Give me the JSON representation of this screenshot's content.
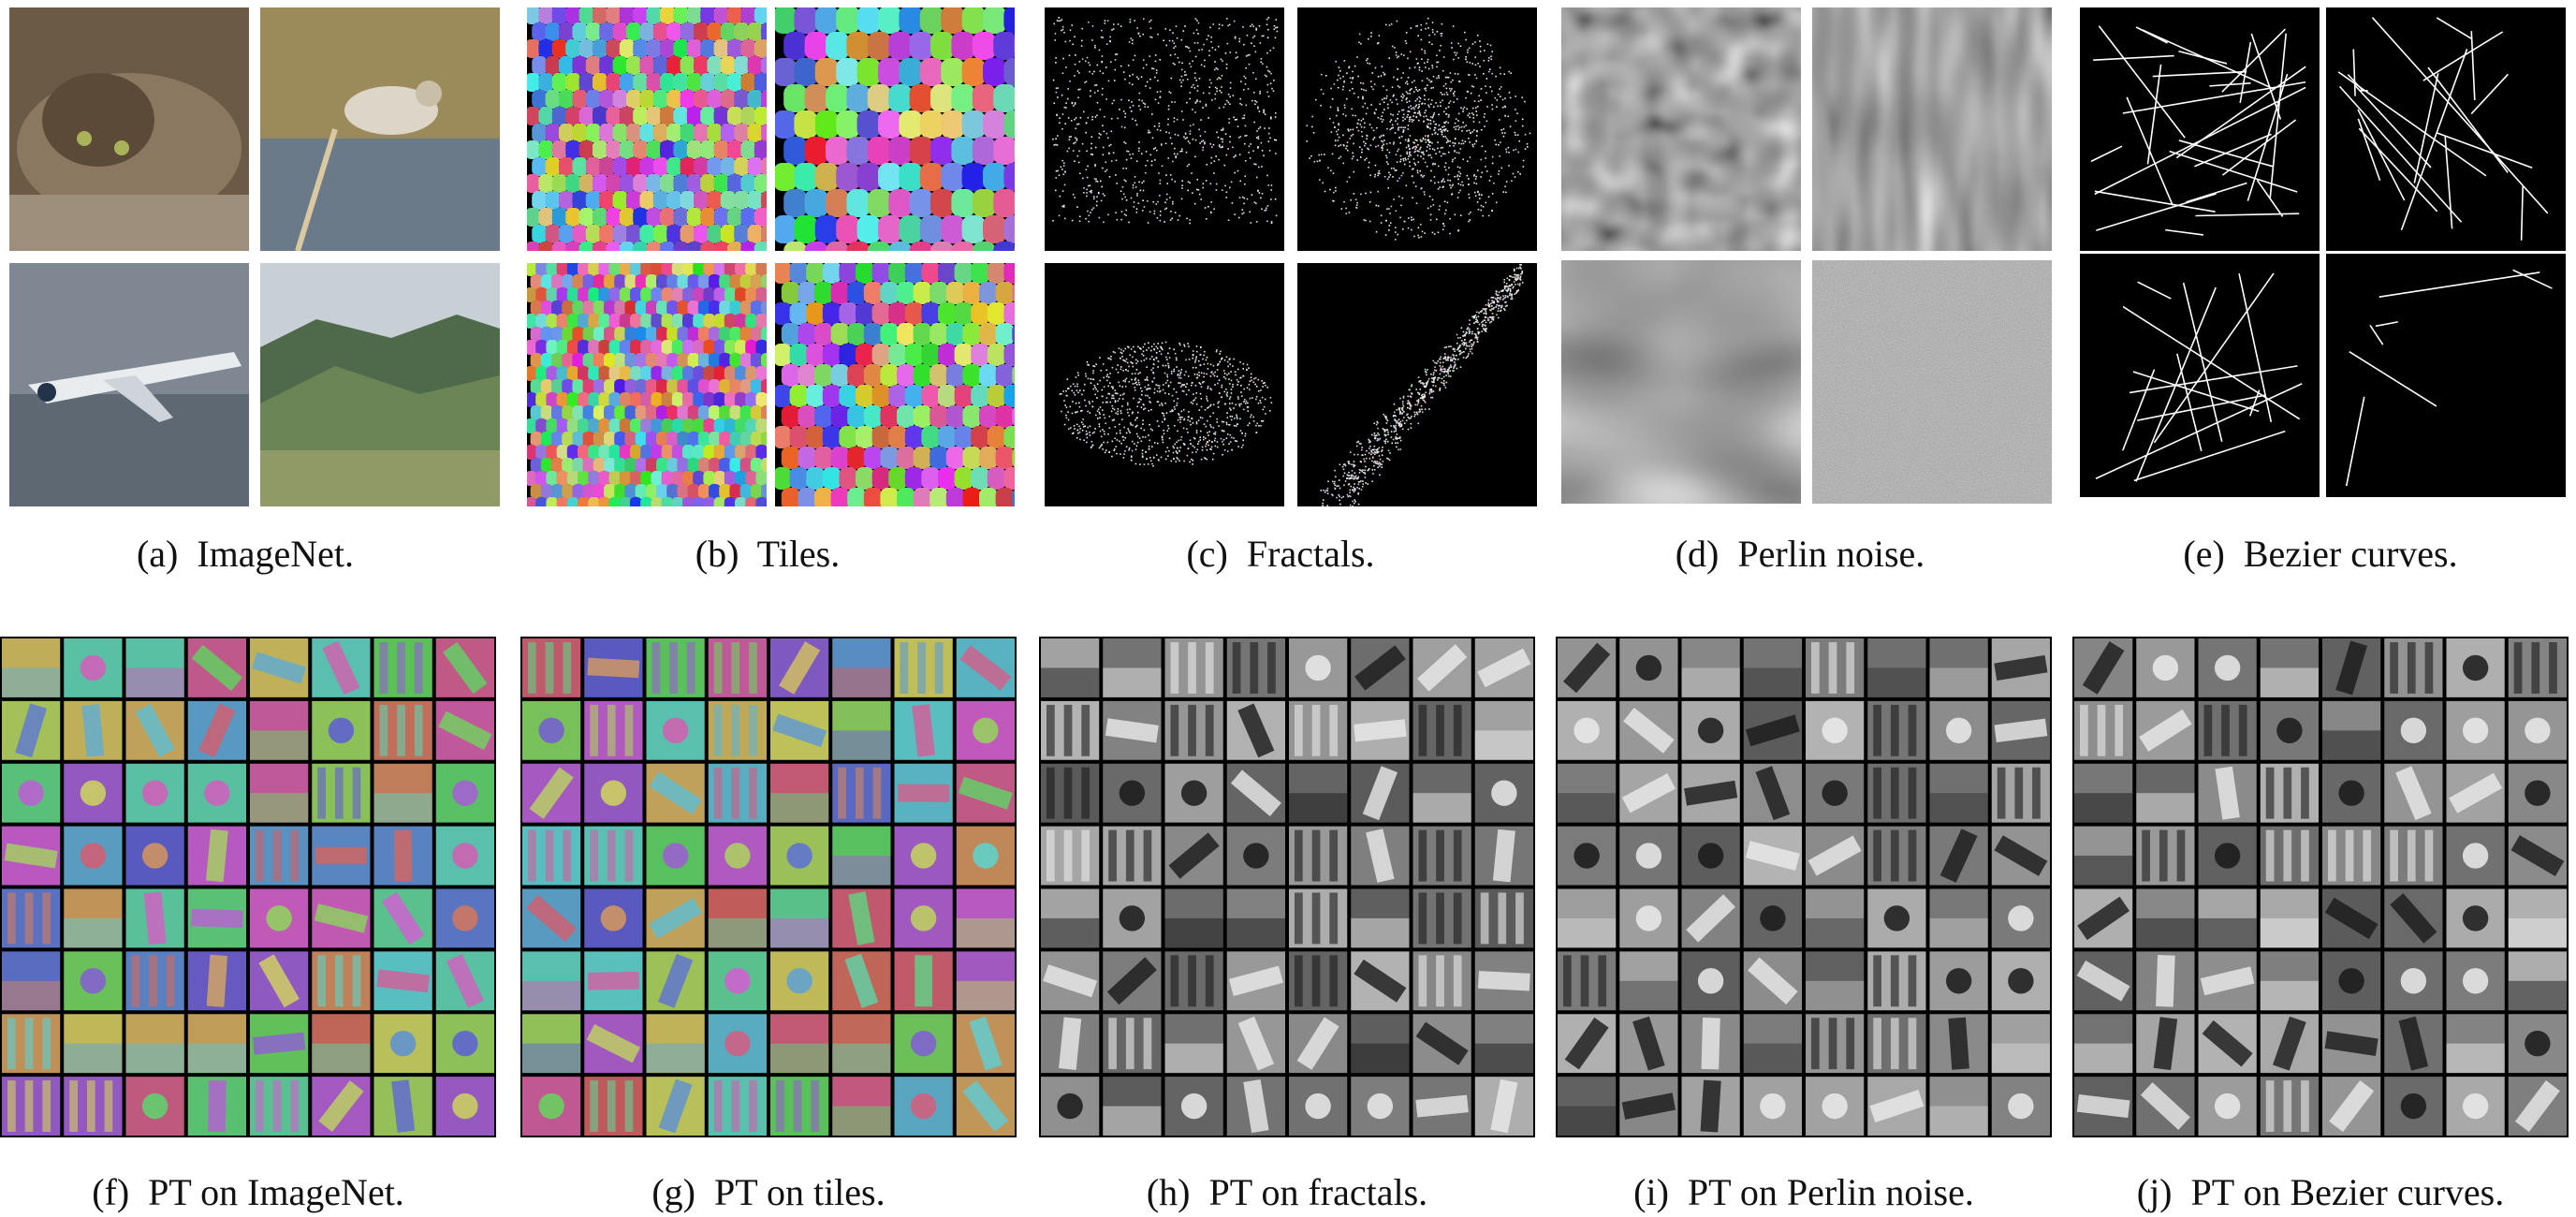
{
  "top_panels": [
    {
      "id": "imagenet",
      "label": "(a)",
      "title": "ImageNet."
    },
    {
      "id": "tiles",
      "label": "(b)",
      "title": "Tiles."
    },
    {
      "id": "fractals",
      "label": "(c)",
      "title": "Fractals."
    },
    {
      "id": "perlin",
      "label": "(d)",
      "title": "Perlin noise."
    },
    {
      "id": "bezier",
      "label": "(e)",
      "title": "Bezier curves."
    }
  ],
  "bottom_panels": [
    {
      "id": "pt-imagenet",
      "label": "(f)",
      "title": "PT on ImageNet.",
      "style": "color"
    },
    {
      "id": "pt-tiles",
      "label": "(g)",
      "title": "PT on tiles.",
      "style": "color"
    },
    {
      "id": "pt-fractals",
      "label": "(h)",
      "title": "PT on fractals.",
      "style": "gray"
    },
    {
      "id": "pt-perlin",
      "label": "(i)",
      "title": "PT on Perlin noise.",
      "style": "gray"
    },
    {
      "id": "pt-bezier",
      "label": "(j)",
      "title": "PT on Bezier curves.",
      "style": "gray"
    }
  ],
  "colors": {
    "background": "#ffffff",
    "text": "#111111",
    "filter_grid_border": "#000000"
  }
}
